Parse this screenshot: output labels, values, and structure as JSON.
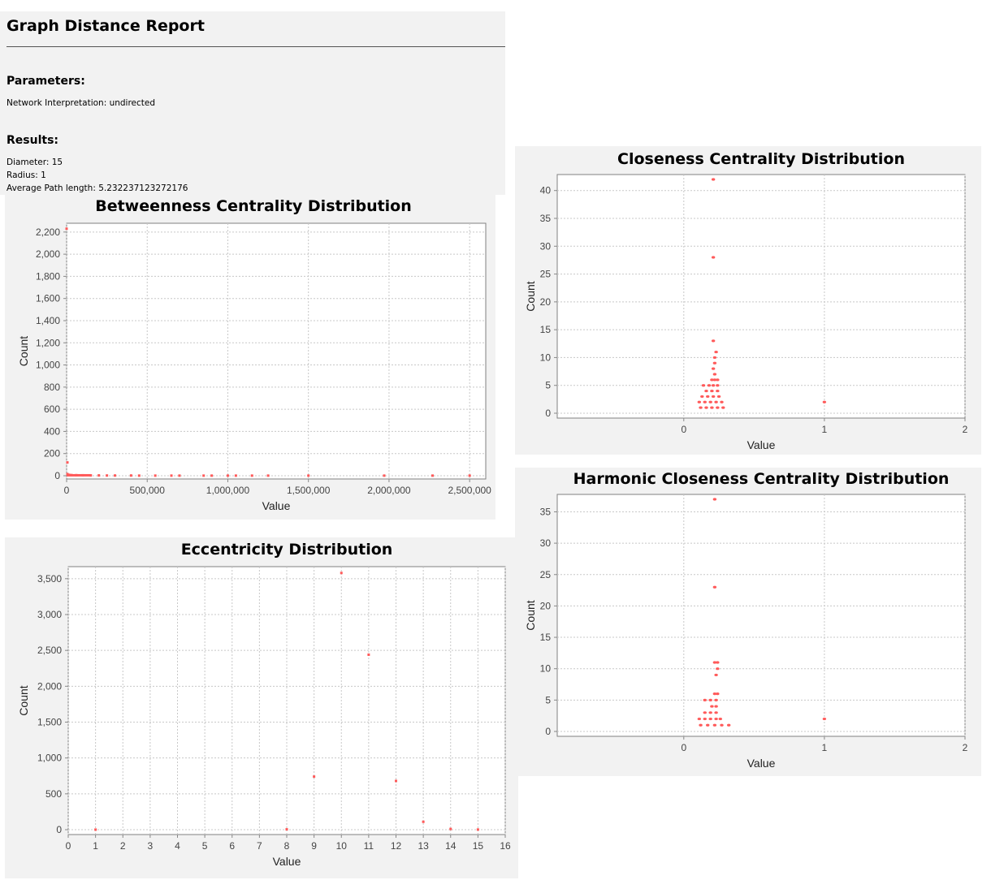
{
  "report": {
    "title": "Graph Distance Report",
    "parameters_heading": "Parameters:",
    "network_interpretation": "Network Interpretation: undirected",
    "results_heading": "Results:",
    "diameter": "Diameter: 15",
    "radius": "Radius: 1",
    "average_path_length": "Average Path length: 5.232237123272176"
  },
  "colors": {
    "point": "#ff5a5a",
    "plot_bg": "#ffffff",
    "grid": "#c8c8c8",
    "panel_bg": "#f2f2f2"
  },
  "chart_data": [
    {
      "id": "betweenness",
      "type": "scatter",
      "title": "Betweenness Centrality Distribution",
      "xlabel": "Value",
      "ylabel": "Count",
      "xlim": [
        0,
        2600000
      ],
      "ylim": [
        0,
        2250
      ],
      "xticks": [
        0,
        500000,
        1000000,
        1500000,
        2000000,
        2500000
      ],
      "xtick_labels": [
        "0",
        "500,000",
        "1,000,000",
        "1,500,000",
        "2,000,000",
        "2,500,000"
      ],
      "yticks": [
        0,
        200,
        400,
        600,
        800,
        1000,
        1200,
        1400,
        1600,
        1800,
        2000,
        2200
      ],
      "ytick_labels": [
        "0",
        "200",
        "400",
        "600",
        "800",
        "1,000",
        "1,200",
        "1,400",
        "1,600",
        "1,800",
        "2,000",
        "2,200"
      ],
      "grid": true,
      "points": [
        [
          0,
          2230
        ],
        [
          5000,
          120
        ],
        [
          5000,
          15
        ],
        [
          15000,
          8
        ],
        [
          30000,
          6
        ],
        [
          60000,
          5
        ],
        [
          100000,
          4
        ],
        [
          150000,
          3
        ],
        [
          200000,
          3
        ],
        [
          250000,
          2
        ],
        [
          300000,
          2
        ],
        [
          400000,
          2
        ],
        [
          450000,
          1
        ],
        [
          550000,
          1
        ],
        [
          650000,
          1
        ],
        [
          700000,
          1
        ],
        [
          850000,
          1
        ],
        [
          900000,
          1
        ],
        [
          1000000,
          1
        ],
        [
          1050000,
          1
        ],
        [
          1150000,
          1
        ],
        [
          1250000,
          1
        ],
        [
          1500000,
          1
        ],
        [
          1970000,
          1
        ],
        [
          2270000,
          1
        ],
        [
          2500000,
          1
        ]
      ]
    },
    {
      "id": "eccentricity",
      "type": "scatter",
      "title": "Eccentricity Distribution",
      "xlabel": "Value",
      "ylabel": "Count",
      "xlim": [
        0,
        16
      ],
      "ylim": [
        0,
        3600
      ],
      "xticks": [
        0,
        1,
        2,
        3,
        4,
        5,
        6,
        7,
        8,
        9,
        10,
        11,
        12,
        13,
        14,
        15,
        16
      ],
      "xtick_labels": [
        "0",
        "1",
        "2",
        "3",
        "4",
        "5",
        "6",
        "7",
        "8",
        "9",
        "10",
        "11",
        "12",
        "13",
        "14",
        "15",
        "16"
      ],
      "yticks": [
        0,
        500,
        1000,
        1500,
        2000,
        2500,
        3000,
        3500
      ],
      "ytick_labels": [
        "0",
        "500",
        "1,000",
        "1,500",
        "2,000",
        "2,500",
        "3,000",
        "3,500"
      ],
      "grid": true,
      "points": [
        [
          1,
          1
        ],
        [
          8,
          5
        ],
        [
          9,
          740
        ],
        [
          10,
          3580
        ],
        [
          11,
          2440
        ],
        [
          12,
          680
        ],
        [
          13,
          110
        ],
        [
          14,
          10
        ],
        [
          15,
          2
        ]
      ]
    },
    {
      "id": "closeness",
      "type": "scatter",
      "title": "Closeness Centrality Distribution",
      "xlabel": "Value",
      "ylabel": "Count",
      "xlim": [
        -0.9,
        2
      ],
      "ylim": [
        0,
        42
      ],
      "xticks": [
        0,
        1,
        2
      ],
      "xtick_labels": [
        "0",
        "1",
        "2"
      ],
      "yticks": [
        0,
        5,
        10,
        15,
        20,
        25,
        30,
        35,
        40
      ],
      "ytick_labels": [
        "0",
        "5",
        "10",
        "15",
        "20",
        "25",
        "30",
        "35",
        "40"
      ],
      "grid": true,
      "points": [
        [
          0.21,
          42
        ],
        [
          0.21,
          28
        ],
        [
          0.21,
          13
        ],
        [
          0.23,
          11
        ],
        [
          0.22,
          10
        ],
        [
          0.22,
          9
        ],
        [
          0.21,
          8
        ],
        [
          0.22,
          7
        ],
        [
          0.2,
          6
        ],
        [
          0.22,
          6
        ],
        [
          0.24,
          6
        ],
        [
          0.14,
          5
        ],
        [
          0.18,
          5
        ],
        [
          0.21,
          5
        ],
        [
          0.24,
          5
        ],
        [
          0.16,
          4
        ],
        [
          0.2,
          4
        ],
        [
          0.24,
          4
        ],
        [
          0.13,
          3
        ],
        [
          0.17,
          3
        ],
        [
          0.21,
          3
        ],
        [
          0.25,
          3
        ],
        [
          0.11,
          2
        ],
        [
          0.15,
          2
        ],
        [
          0.19,
          2
        ],
        [
          0.23,
          2
        ],
        [
          0.27,
          2
        ],
        [
          0.12,
          1
        ],
        [
          0.16,
          1
        ],
        [
          0.2,
          1
        ],
        [
          0.24,
          1
        ],
        [
          0.28,
          1
        ],
        [
          1,
          2
        ]
      ]
    },
    {
      "id": "harmonic",
      "type": "scatter",
      "title": "Harmonic Closeness Centrality Distribution",
      "xlabel": "Value",
      "ylabel": "Count",
      "xlim": [
        -0.9,
        2
      ],
      "ylim": [
        0,
        37
      ],
      "xticks": [
        0,
        1,
        2
      ],
      "xtick_labels": [
        "0",
        "1",
        "2"
      ],
      "yticks": [
        0,
        5,
        10,
        15,
        20,
        25,
        30,
        35
      ],
      "ytick_labels": [
        "0",
        "5",
        "10",
        "15",
        "20",
        "25",
        "30",
        "35"
      ],
      "grid": true,
      "points": [
        [
          0.22,
          37
        ],
        [
          0.22,
          23
        ],
        [
          0.22,
          11
        ],
        [
          0.24,
          11
        ],
        [
          0.24,
          10
        ],
        [
          0.23,
          9
        ],
        [
          0.22,
          6
        ],
        [
          0.24,
          6
        ],
        [
          0.15,
          5
        ],
        [
          0.19,
          5
        ],
        [
          0.23,
          5
        ],
        [
          0.2,
          4
        ],
        [
          0.23,
          4
        ],
        [
          0.15,
          3
        ],
        [
          0.19,
          3
        ],
        [
          0.23,
          3
        ],
        [
          0.11,
          2
        ],
        [
          0.15,
          2
        ],
        [
          0.19,
          2
        ],
        [
          0.23,
          2
        ],
        [
          0.26,
          2
        ],
        [
          0.12,
          1
        ],
        [
          0.17,
          1
        ],
        [
          0.22,
          1
        ],
        [
          0.27,
          1
        ],
        [
          0.32,
          1
        ],
        [
          1,
          2
        ]
      ]
    }
  ]
}
